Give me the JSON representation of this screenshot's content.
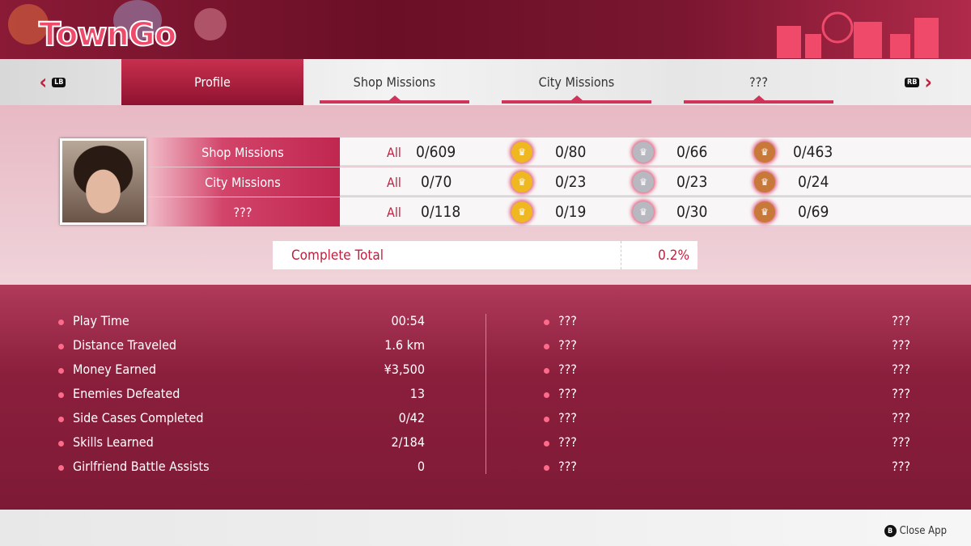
{
  "app": {
    "title": "TownGo"
  },
  "tabs": [
    {
      "label": "LB",
      "kind": "prev"
    },
    {
      "label": "Profile",
      "active": true
    },
    {
      "label": "Shop Missions"
    },
    {
      "label": "City Missions"
    },
    {
      "label": "???"
    },
    {
      "label": "RB",
      "kind": "next"
    }
  ],
  "missions": {
    "all_label": "All",
    "rows": [
      {
        "label": "Shop Missions",
        "all": "0/609",
        "gold": "0/80",
        "silver": "0/66",
        "bronze": "0/463"
      },
      {
        "label": "City Missions",
        "all": "0/70",
        "gold": "0/23",
        "silver": "0/23",
        "bronze": "0/24"
      },
      {
        "label": "???",
        "all": "0/118",
        "gold": "0/19",
        "silver": "0/30",
        "bronze": "0/69"
      }
    ],
    "medal_colors": {
      "gold": "#f0b820",
      "silver": "#b8b8c0",
      "bronze": "#c87838"
    }
  },
  "complete_total": {
    "label": "Complete Total",
    "value": "0.2%"
  },
  "stats_left": [
    {
      "label": "Play Time",
      "value": "00:54"
    },
    {
      "label": "Distance Traveled",
      "value": "1.6 km"
    },
    {
      "label": "Money Earned",
      "value": "¥3,500"
    },
    {
      "label": "Enemies Defeated",
      "value": "13"
    },
    {
      "label": "Side Cases Completed",
      "value": "0/42"
    },
    {
      "label": "Skills Learned",
      "value": "2/184"
    },
    {
      "label": "Girlfriend Battle Assists",
      "value": "0"
    }
  ],
  "stats_right": [
    {
      "label": "???",
      "value": "???"
    },
    {
      "label": "???",
      "value": "???"
    },
    {
      "label": "???",
      "value": "???"
    },
    {
      "label": "???",
      "value": "???"
    },
    {
      "label": "???",
      "value": "???"
    },
    {
      "label": "???",
      "value": "???"
    },
    {
      "label": "???",
      "value": "???"
    }
  ],
  "footer": {
    "button": "B",
    "label": "Close App"
  }
}
